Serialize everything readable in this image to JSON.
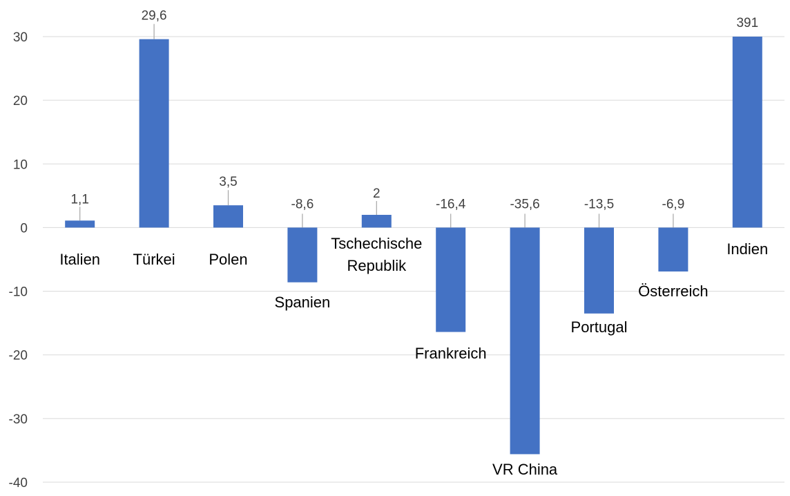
{
  "chart_data": {
    "type": "bar",
    "title": "",
    "xlabel": "",
    "ylabel": "",
    "ylim": [
      -40,
      30
    ],
    "yticks": [
      -40,
      -30,
      -20,
      -10,
      0,
      10,
      20,
      30
    ],
    "grid": true,
    "legend": "none",
    "bar_color": "#4472C4",
    "categories": [
      "Italien",
      "Türkei",
      "Polen",
      "Spanien",
      "Tschechische Republik",
      "Frankreich",
      "VR China",
      "Portugal",
      "Österreich",
      "Indien"
    ],
    "category_label_lines": [
      [
        "Italien"
      ],
      [
        "Türkei"
      ],
      [
        "Polen"
      ],
      [
        "Spanien"
      ],
      [
        "Tschechische",
        "Republik"
      ],
      [
        "Frankreich"
      ],
      [
        "VR China"
      ],
      [
        "Portugal"
      ],
      [
        "Österreich"
      ],
      [
        "Indien"
      ]
    ],
    "values": [
      1.1,
      29.6,
      3.5,
      -8.6,
      2,
      -16.4,
      -35.6,
      -13.5,
      -6.9,
      391
    ],
    "data_labels": [
      "1,1",
      "29,6",
      "3,5",
      "-8,6",
      "2",
      "-16,4",
      "-35,6",
      "-13,5",
      "-6,9",
      "391"
    ],
    "clipped_at_axis_max": [
      "Indien"
    ]
  }
}
